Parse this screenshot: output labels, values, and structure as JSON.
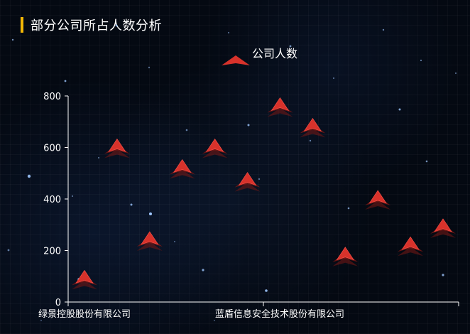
{
  "title": "部分公司所占人数分析",
  "legend": {
    "label": "公司人数",
    "position": "top-center",
    "color": "#d8322b"
  },
  "chart_data": {
    "type": "scatter",
    "title": "部分公司所占人数分析",
    "xlabel": "",
    "ylabel": "",
    "ylim": [
      0,
      800
    ],
    "yticks": [
      0,
      200,
      400,
      600,
      800
    ],
    "xticks": [
      "绿景控股股份有限公司",
      "蓝盾信息安全技术股份有限公司"
    ],
    "series": [
      {
        "name": "公司人数",
        "values": [
          90,
          600,
          240,
          520,
          600,
          470,
          760,
          680,
          180,
          400,
          220,
          290
        ]
      }
    ],
    "marker": "custom-arrow",
    "grid": false,
    "legend_placement": "top-center"
  },
  "colors": {
    "background": "#050a14",
    "title_bar": "#f2b705",
    "marker_fill": "#d8322b",
    "marker_shadow": "#7a1714",
    "axis": "#ffffff"
  }
}
